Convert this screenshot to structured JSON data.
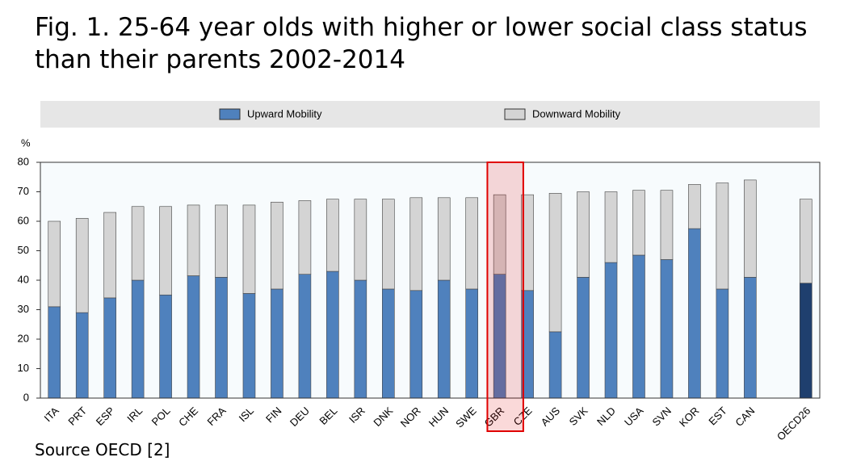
{
  "chart_data": {
    "type": "stacked_bar",
    "title": "Fig. 1. 25-64 year olds with higher or lower social class status than their parents 2002-2014",
    "source": "Source OECD [2]",
    "y_label": "%",
    "categories": [
      "ITA",
      "PRT",
      "ESP",
      "IRL",
      "POL",
      "CHE",
      "FRA",
      "ISL",
      "FIN",
      "DEU",
      "BEL",
      "ISR",
      "DNK",
      "NOR",
      "HUN",
      "SWE",
      "GBR",
      "CZE",
      "AUS",
      "SVK",
      "NLD",
      "USA",
      "SVN",
      "KOR",
      "EST",
      "CAN",
      null,
      "OECD26"
    ],
    "series": [
      {
        "name": "Upward Mobility",
        "color": "#4f81bd",
        "values": [
          31,
          29,
          34,
          40,
          35,
          41.5,
          41,
          35.5,
          37,
          42,
          43,
          40,
          37,
          36.5,
          40,
          37,
          42,
          36.5,
          22.5,
          41,
          46,
          48.5,
          47,
          57.5,
          37,
          41,
          null,
          39
        ]
      },
      {
        "name": "Downward Mobility",
        "color": "#d4d4d4",
        "values": [
          29,
          32,
          29,
          25,
          30,
          24,
          24.5,
          30,
          29.5,
          25,
          24.5,
          27.5,
          30.5,
          31.5,
          28,
          31,
          27,
          32.5,
          47,
          29,
          24,
          22,
          23.5,
          15,
          36,
          33,
          null,
          28.5
        ]
      }
    ],
    "emphasis_index": 27,
    "emphasis_color": "#1f3f6e",
    "highlight_index": 16,
    "highlight_color": "#e00000",
    "ylim": [
      0,
      80
    ],
    "yticks": [
      0,
      10,
      20,
      30,
      40,
      50,
      60,
      70,
      80
    ],
    "grid": false
  }
}
